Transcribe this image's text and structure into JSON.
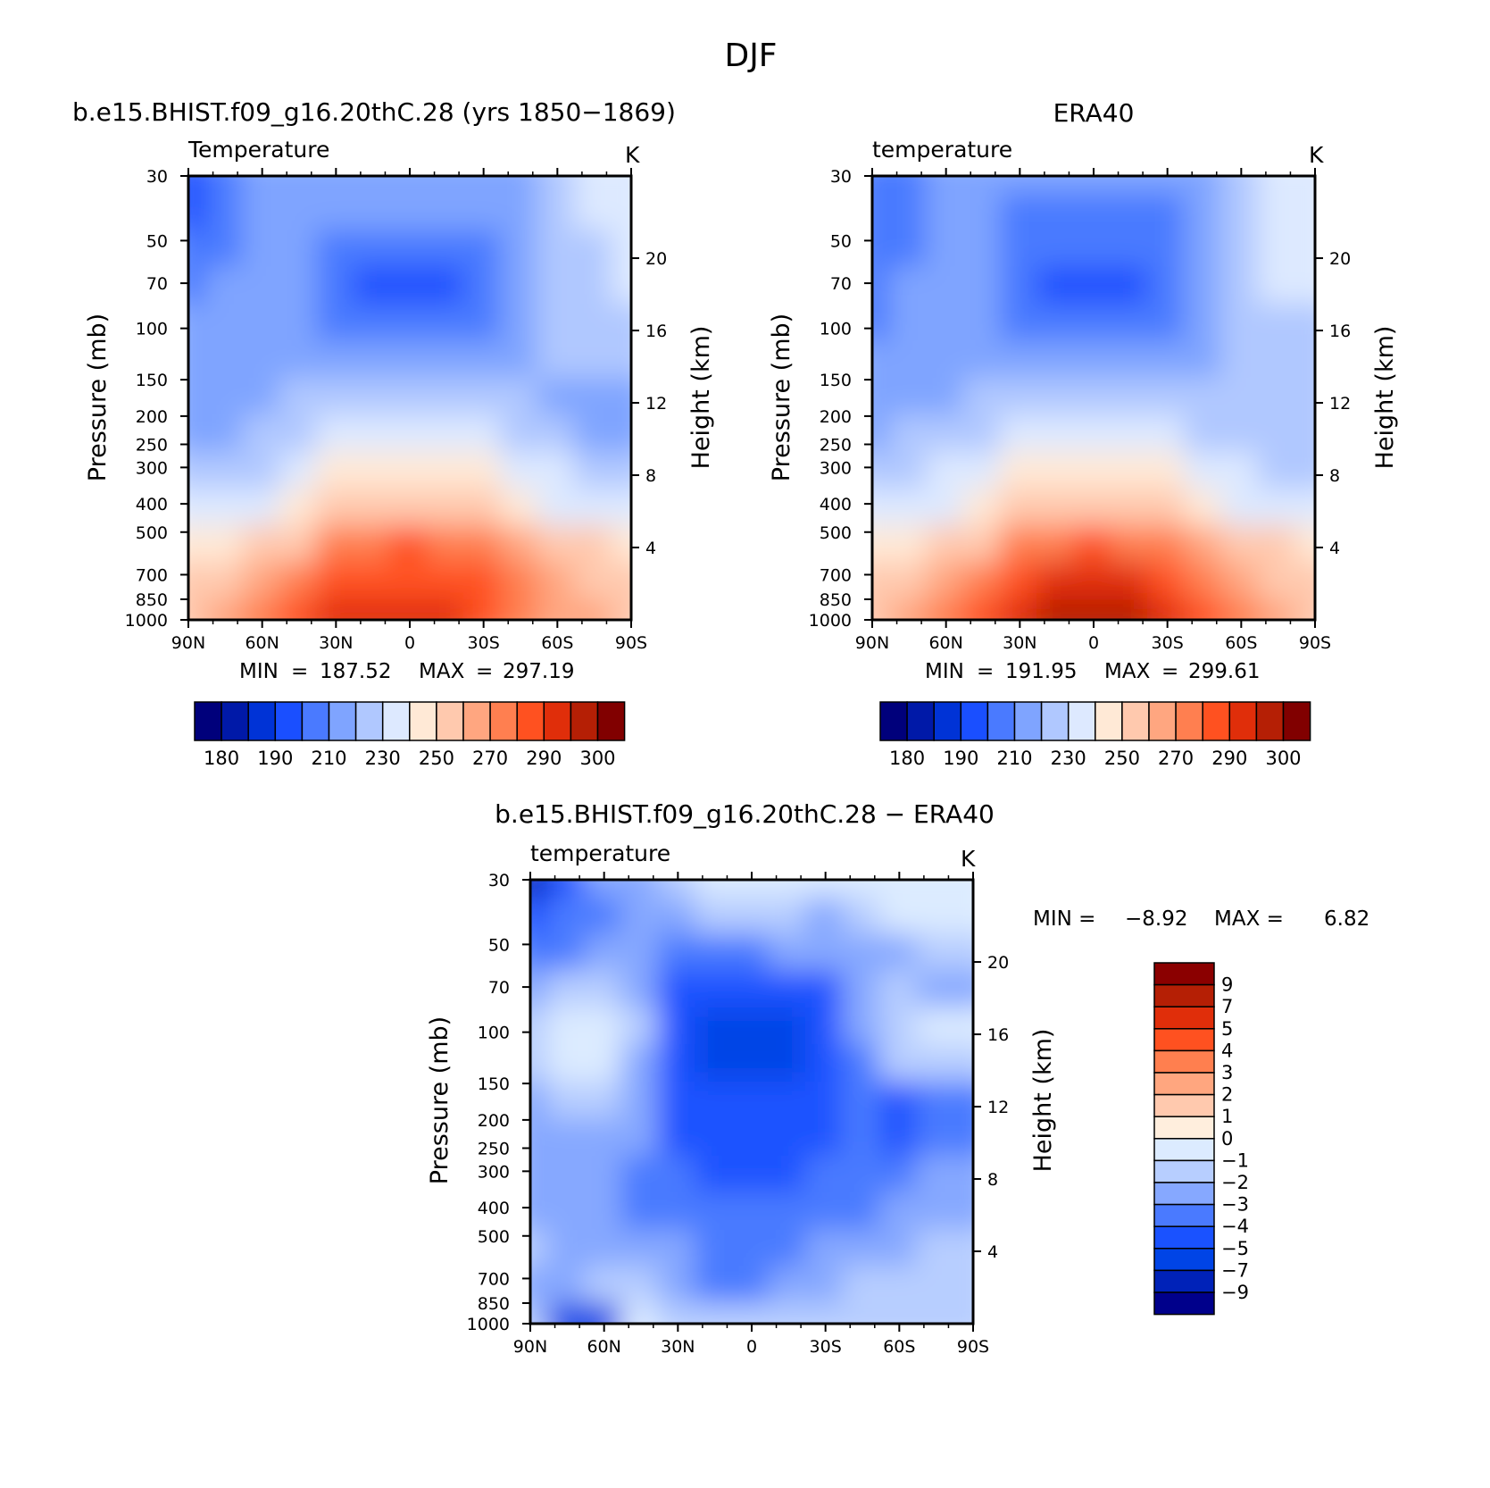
{
  "figure": {
    "title": "DJF",
    "top_left_title": "b.e15.BHIST.f09_g16.20thC.28 (yrs 1850−1869)",
    "top_right_title": "ERA40",
    "bottom_title": "b.e15.BHIST.f09_g16.20thC.28 − ERA40"
  },
  "chart_data": [
    {
      "type": "heatmap",
      "panel": "model",
      "variable_label": "Temperature",
      "units": "K",
      "ylabel": "Pressure (mb)",
      "ylabel_right": "Height (km)",
      "x_ticks": [
        "90N",
        "60N",
        "30N",
        "0",
        "30S",
        "60S",
        "90S"
      ],
      "x_values": [
        90,
        60,
        30,
        0,
        -30,
        -60,
        -90
      ],
      "xlim": [
        90,
        -90
      ],
      "y_ticks": [
        "30",
        "50",
        "70",
        "100",
        "150",
        "200",
        "250",
        "300",
        "400",
        "500",
        "700",
        "850",
        "1000"
      ],
      "y_values": [
        30,
        50,
        70,
        100,
        150,
        200,
        250,
        300,
        400,
        500,
        700,
        850,
        1000
      ],
      "ylim": [
        1000,
        30
      ],
      "y_scale": "log",
      "height_ticks": [
        "4",
        "8",
        "12",
        "16",
        "20"
      ],
      "stats": {
        "min_label": "MIN",
        "min": "187.52",
        "max_label": "MAX",
        "max": "297.19"
      },
      "field_rows_pressure": [
        30,
        50,
        70,
        100,
        150,
        200,
        250,
        300,
        400,
        500,
        700,
        850,
        1000
      ],
      "field_cols_lat": [
        90,
        75,
        60,
        45,
        30,
        15,
        0,
        -15,
        -30,
        -45,
        -60,
        -75,
        -90
      ],
      "field_level_index": [
        [
          3,
          4,
          5,
          5,
          5,
          5,
          5,
          5,
          5,
          5,
          6,
          7,
          7
        ],
        [
          3,
          4,
          5,
          5,
          5,
          5,
          5,
          5,
          5,
          5,
          6,
          7,
          7
        ],
        [
          4,
          4,
          5,
          5,
          4,
          4,
          4,
          4,
          4,
          5,
          6,
          6,
          7
        ],
        [
          4,
          5,
          5,
          5,
          4,
          3,
          3,
          3,
          4,
          5,
          6,
          6,
          7
        ],
        [
          5,
          5,
          5,
          5,
          4,
          4,
          4,
          4,
          4,
          5,
          6,
          6,
          6
        ],
        [
          5,
          5,
          5,
          5,
          5,
          5,
          5,
          5,
          5,
          5,
          6,
          6,
          6
        ],
        [
          5,
          5,
          5,
          6,
          6,
          6,
          6,
          6,
          6,
          6,
          5,
          5,
          5
        ],
        [
          5,
          5,
          6,
          6,
          7,
          7,
          7,
          7,
          7,
          6,
          6,
          5,
          5
        ],
        [
          6,
          6,
          6,
          7,
          8,
          8,
          8,
          8,
          8,
          7,
          7,
          6,
          6
        ],
        [
          7,
          7,
          7,
          8,
          9,
          9,
          9,
          9,
          9,
          8,
          7,
          7,
          7
        ],
        [
          8,
          8,
          9,
          9,
          11,
          11,
          12,
          11,
          11,
          10,
          9,
          9,
          8
        ],
        [
          9,
          9,
          10,
          11,
          12,
          12,
          12,
          12,
          12,
          11,
          10,
          9,
          9
        ],
        [
          9,
          10,
          11,
          12,
          13,
          13,
          13,
          13,
          12,
          11,
          10,
          10,
          9
        ]
      ]
    },
    {
      "type": "heatmap",
      "panel": "obs",
      "variable_label": "temperature",
      "units": "K",
      "ylabel": "Pressure (mb)",
      "ylabel_right": "Height (km)",
      "x_ticks": [
        "90N",
        "60N",
        "30N",
        "0",
        "30S",
        "60S",
        "90S"
      ],
      "y_ticks": [
        "30",
        "50",
        "70",
        "100",
        "150",
        "200",
        "250",
        "300",
        "400",
        "500",
        "700",
        "850",
        "1000"
      ],
      "height_ticks": [
        "4",
        "8",
        "12",
        "16",
        "20"
      ],
      "stats": {
        "min_label": "MIN",
        "min": "191.95",
        "max_label": "MAX",
        "max": "299.61"
      },
      "field_level_index": [
        [
          4,
          4,
          5,
          5,
          5,
          5,
          5,
          5,
          5,
          5,
          6,
          7,
          7
        ],
        [
          4,
          4,
          5,
          5,
          4,
          4,
          4,
          4,
          4,
          5,
          6,
          7,
          7
        ],
        [
          4,
          4,
          5,
          5,
          4,
          4,
          4,
          4,
          4,
          5,
          6,
          7,
          7
        ],
        [
          4,
          5,
          5,
          5,
          4,
          3,
          3,
          3,
          4,
          5,
          6,
          7,
          7
        ],
        [
          4,
          5,
          5,
          5,
          4,
          4,
          4,
          4,
          4,
          5,
          6,
          6,
          6
        ],
        [
          5,
          5,
          5,
          5,
          5,
          5,
          5,
          5,
          5,
          5,
          6,
          6,
          6
        ],
        [
          5,
          5,
          5,
          6,
          6,
          6,
          6,
          6,
          6,
          6,
          6,
          6,
          6
        ],
        [
          5,
          6,
          6,
          6,
          7,
          7,
          7,
          7,
          7,
          6,
          6,
          6,
          6
        ],
        [
          6,
          6,
          7,
          7,
          8,
          8,
          8,
          8,
          8,
          7,
          7,
          6,
          6
        ],
        [
          7,
          7,
          7,
          8,
          9,
          9,
          9,
          9,
          9,
          8,
          7,
          7,
          7
        ],
        [
          8,
          8,
          9,
          9,
          11,
          11,
          12,
          11,
          11,
          10,
          9,
          9,
          8
        ],
        [
          9,
          9,
          10,
          11,
          12,
          13,
          13,
          13,
          12,
          11,
          10,
          9,
          9
        ],
        [
          9,
          10,
          11,
          12,
          13,
          14,
          14,
          14,
          13,
          12,
          11,
          10,
          9
        ]
      ]
    },
    {
      "type": "heatmap",
      "panel": "diff",
      "variable_label": "temperature",
      "units": "K",
      "ylabel": "Pressure (mb)",
      "ylabel_right": "Height (km)",
      "x_ticks": [
        "90N",
        "60N",
        "30N",
        "0",
        "30S",
        "60S",
        "90S"
      ],
      "y_ticks": [
        "30",
        "50",
        "70",
        "100",
        "150",
        "200",
        "250",
        "300",
        "400",
        "500",
        "700",
        "850",
        "1000"
      ],
      "height_ticks": [
        "4",
        "8",
        "12",
        "16",
        "20"
      ],
      "stats": {
        "min_label": "MIN =",
        "min": "−8.92",
        "max_label": "MAX =",
        "max": "6.82"
      },
      "field_level_index": [
        [
          1,
          3,
          5,
          5,
          6,
          7,
          7,
          7,
          7,
          7,
          7,
          7,
          7
        ],
        [
          3,
          4,
          4,
          5,
          5,
          6,
          6,
          6,
          5,
          6,
          7,
          7,
          7
        ],
        [
          4,
          4,
          5,
          5,
          4,
          4,
          4,
          5,
          5,
          5,
          5,
          6,
          6
        ],
        [
          5,
          6,
          6,
          5,
          3,
          3,
          3,
          3,
          3,
          5,
          6,
          5,
          5
        ],
        [
          6,
          7,
          7,
          6,
          3,
          2,
          2,
          2,
          3,
          5,
          6,
          7,
          7
        ],
        [
          6,
          7,
          7,
          5,
          3,
          2,
          2,
          2,
          3,
          4,
          6,
          6,
          6
        ],
        [
          5,
          6,
          6,
          5,
          3,
          3,
          3,
          3,
          3,
          4,
          3,
          4,
          4
        ],
        [
          5,
          5,
          5,
          5,
          3,
          3,
          3,
          3,
          3,
          4,
          3,
          4,
          4
        ],
        [
          5,
          5,
          5,
          4,
          4,
          3,
          3,
          3,
          4,
          4,
          4,
          5,
          5
        ],
        [
          5,
          5,
          5,
          4,
          4,
          4,
          4,
          4,
          4,
          4,
          5,
          5,
          5
        ],
        [
          6,
          5,
          5,
          5,
          5,
          4,
          4,
          4,
          5,
          5,
          5,
          6,
          6
        ],
        [
          5,
          5,
          6,
          6,
          5,
          4,
          4,
          5,
          5,
          6,
          6,
          6,
          6
        ],
        [
          6,
          2,
          2,
          7,
          6,
          6,
          6,
          6,
          6,
          6,
          6,
          6,
          6
        ]
      ]
    }
  ],
  "colorbars": {
    "absolute": {
      "labels": [
        "180",
        "190",
        "210",
        "230",
        "250",
        "270",
        "290",
        "300"
      ],
      "colors": [
        "#00007b",
        "#0019a8",
        "#0033d6",
        "#1a4fff",
        "#4a7aff",
        "#7fa4ff",
        "#b0c8ff",
        "#dde9ff",
        "#ffe9d6",
        "#ffc9ae",
        "#ffa680",
        "#ff7f50",
        "#ff5120",
        "#e02e0a",
        "#b51f05",
        "#810000"
      ]
    },
    "diff": {
      "labels": [
        "9",
        "7",
        "5",
        "4",
        "3",
        "2",
        "1",
        "0",
        "−1",
        "−2",
        "−3",
        "−4",
        "−5",
        "−7",
        "−9"
      ],
      "colors": [
        "#00008b",
        "#0022b8",
        "#0044e6",
        "#1a52ff",
        "#4a7aff",
        "#86a8ff",
        "#b7ceff",
        "#dcebff",
        "#ffeedd",
        "#ffc9ae",
        "#ffa67f",
        "#ff7f4f",
        "#ff5120",
        "#e02e0a",
        "#b51f05",
        "#8b0000"
      ]
    }
  }
}
